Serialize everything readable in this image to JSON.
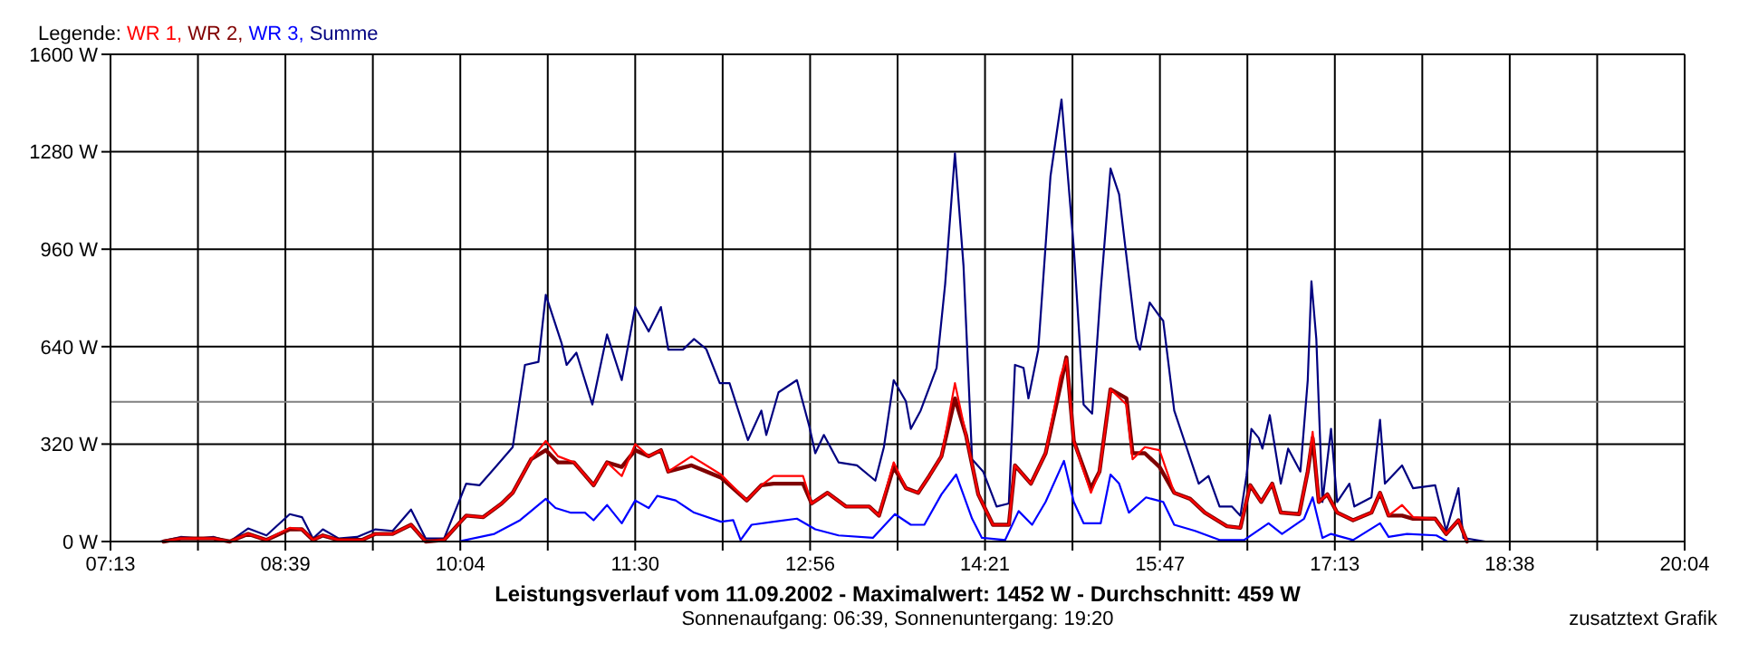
{
  "chart_data": {
    "type": "line",
    "title": "Leistungsverlauf vom 11.09.2002 - Maximalwert: 1452 W - Durchschnitt: 459 W",
    "subtitle": "Sonnenaufgang: 06:39, Sonnenuntergang: 19:20",
    "annotations": [
      "zusatztext Grafik"
    ],
    "legend": "top left",
    "legend_title": "Legende:",
    "grid": true,
    "marker": "none",
    "line_style": "solid",
    "xlim": [
      7.2167,
      20.0667
    ],
    "xticks": [
      {
        "value": 7.2167,
        "label": "07:13"
      },
      {
        "value": 7.9306,
        "label": null
      },
      {
        "value": 8.6444,
        "label": "08:39"
      },
      {
        "value": 9.3583,
        "label": null
      },
      {
        "value": 10.0722,
        "label": "10:04"
      },
      {
        "value": 10.7861,
        "label": null
      },
      {
        "value": 11.5,
        "label": "11:30"
      },
      {
        "value": 12.2139,
        "label": null
      },
      {
        "value": 12.9278,
        "label": "12:56"
      },
      {
        "value": 13.6417,
        "label": null
      },
      {
        "value": 14.3556,
        "label": "14:21"
      },
      {
        "value": 15.0694,
        "label": null
      },
      {
        "value": 15.7833,
        "label": "15:47"
      },
      {
        "value": 16.4972,
        "label": null
      },
      {
        "value": 17.2111,
        "label": "17:13"
      },
      {
        "value": 17.925,
        "label": null
      },
      {
        "value": 18.6389,
        "label": "18:38"
      },
      {
        "value": 19.3528,
        "label": null
      },
      {
        "value": 20.0667,
        "label": "20:04"
      }
    ],
    "ylim": [
      0,
      1600
    ],
    "yticks": [
      {
        "value": 0,
        "label": "0 W"
      },
      {
        "value": 320,
        "label": "320 W"
      },
      {
        "value": 640,
        "label": "640 W"
      },
      {
        "value": 960,
        "label": "960 W"
      },
      {
        "value": 1280,
        "label": "1280 W"
      },
      {
        "value": 1600,
        "label": "1600 W"
      }
    ],
    "ref_lines": [
      {
        "axis": "y",
        "value": 459,
        "color": "#808080"
      }
    ],
    "series": [
      {
        "name": "WR 1,",
        "color": "#ff0000",
        "x": [
          7.65,
          7.79,
          8.06,
          8.19,
          8.34,
          8.49,
          8.68,
          8.78,
          8.87,
          8.95,
          9.08,
          9.27,
          9.38,
          9.52,
          9.67,
          9.79,
          9.94,
          10.12,
          10.26,
          10.41,
          10.5,
          10.65,
          10.77,
          10.87,
          11.0,
          11.16,
          11.27,
          11.39,
          11.5,
          11.61,
          11.71,
          11.77,
          11.96,
          12.2,
          12.41,
          12.53,
          12.63,
          12.87,
          12.94,
          13.07,
          13.22,
          13.41,
          13.49,
          13.61,
          13.71,
          13.81,
          13.9,
          14.0,
          14.11,
          14.2,
          14.3,
          14.42,
          14.55,
          14.6,
          14.73,
          14.85,
          14.97,
          15.02,
          15.08,
          15.22,
          15.29,
          15.38,
          15.51,
          15.56,
          15.66,
          15.78,
          15.9,
          16.03,
          16.15,
          16.33,
          16.44,
          16.52,
          16.61,
          16.7,
          16.77,
          16.92,
          16.99,
          17.03,
          17.08,
          17.15,
          17.23,
          17.36,
          17.51,
          17.58,
          17.65,
          17.76,
          17.85,
          18.03,
          18.12,
          18.22,
          18.29
        ],
        "values": [
          0,
          10,
          10,
          0,
          25,
          5,
          45,
          40,
          5,
          20,
          5,
          5,
          25,
          25,
          55,
          0,
          5,
          85,
          80,
          125,
          160,
          270,
          330,
          280,
          260,
          185,
          260,
          215,
          320,
          280,
          300,
          230,
          280,
          220,
          135,
          185,
          215,
          215,
          125,
          160,
          115,
          115,
          85,
          260,
          175,
          160,
          215,
          280,
          520,
          350,
          155,
          55,
          55,
          250,
          190,
          290,
          540,
          600,
          330,
          160,
          230,
          500,
          450,
          270,
          310,
          300,
          160,
          140,
          95,
          50,
          45,
          185,
          130,
          190,
          95,
          90,
          230,
          360,
          130,
          155,
          95,
          70,
          95,
          160,
          85,
          120,
          80,
          75,
          25,
          70,
          0
        ]
      },
      {
        "name": "WR 2,",
        "color": "#800000",
        "x": [
          7.65,
          7.79,
          8.06,
          8.19,
          8.34,
          8.49,
          8.68,
          8.78,
          8.87,
          8.95,
          9.08,
          9.27,
          9.38,
          9.52,
          9.67,
          9.79,
          9.94,
          10.12,
          10.26,
          10.41,
          10.5,
          10.65,
          10.77,
          10.87,
          11.0,
          11.16,
          11.27,
          11.39,
          11.5,
          11.61,
          11.71,
          11.77,
          11.96,
          12.2,
          12.41,
          12.53,
          12.63,
          12.87,
          12.94,
          13.07,
          13.22,
          13.41,
          13.49,
          13.61,
          13.71,
          13.81,
          13.9,
          14.0,
          14.11,
          14.2,
          14.3,
          14.42,
          14.55,
          14.6,
          14.73,
          14.85,
          14.97,
          15.02,
          15.08,
          15.22,
          15.29,
          15.38,
          15.51,
          15.56,
          15.66,
          15.78,
          15.9,
          16.03,
          16.15,
          16.33,
          16.44,
          16.52,
          16.61,
          16.7,
          16.77,
          16.92,
          16.99,
          17.03,
          17.08,
          17.15,
          17.23,
          17.36,
          17.51,
          17.58,
          17.65,
          17.76,
          17.85,
          18.03,
          18.12,
          18.22,
          18.29
        ],
        "values": [
          0,
          10,
          10,
          0,
          25,
          5,
          40,
          40,
          5,
          20,
          5,
          5,
          25,
          25,
          55,
          0,
          5,
          85,
          80,
          125,
          160,
          270,
          300,
          260,
          260,
          185,
          260,
          245,
          300,
          280,
          300,
          230,
          250,
          210,
          135,
          185,
          190,
          190,
          125,
          160,
          115,
          115,
          85,
          245,
          175,
          160,
          215,
          280,
          470,
          350,
          155,
          55,
          55,
          250,
          190,
          290,
          510,
          605,
          330,
          175,
          230,
          500,
          470,
          290,
          290,
          245,
          160,
          140,
          95,
          50,
          45,
          185,
          130,
          190,
          95,
          90,
          230,
          340,
          130,
          155,
          95,
          70,
          95,
          160,
          85,
          85,
          75,
          75,
          25,
          70,
          0
        ]
      },
      {
        "name": "WR 3,",
        "color": "#0000ff",
        "x": [
          9.94,
          10.06,
          10.35,
          10.56,
          10.65,
          10.77,
          10.85,
          10.97,
          11.09,
          11.16,
          11.27,
          11.39,
          11.5,
          11.61,
          11.68,
          11.83,
          11.98,
          12.2,
          12.3,
          12.36,
          12.45,
          12.63,
          12.82,
          12.97,
          13.16,
          13.44,
          13.62,
          13.75,
          13.86,
          14.0,
          14.12,
          14.25,
          14.33,
          14.52,
          14.63,
          14.74,
          14.85,
          15.0,
          15.08,
          15.16,
          15.3,
          15.38,
          15.45,
          15.53,
          15.67,
          15.81,
          15.9,
          16.07,
          16.27,
          16.47,
          16.67,
          16.78,
          16.96,
          17.03,
          17.11,
          17.18,
          17.36,
          17.58,
          17.65,
          17.8,
          18.04,
          18.13
        ],
        "values": [
          0,
          0,
          25,
          70,
          100,
          140,
          110,
          95,
          95,
          70,
          120,
          60,
          135,
          110,
          150,
          135,
          95,
          65,
          70,
          5,
          55,
          65,
          75,
          40,
          20,
          12,
          90,
          55,
          55,
          155,
          220,
          75,
          12,
          5,
          100,
          55,
          130,
          265,
          130,
          60,
          60,
          220,
          190,
          95,
          145,
          130,
          55,
          35,
          5,
          5,
          60,
          25,
          75,
          145,
          12,
          25,
          5,
          60,
          15,
          25,
          20,
          0
        ]
      },
      {
        "name": "Summe",
        "color": "#000080",
        "x": [
          7.62,
          7.79,
          7.94,
          8.06,
          8.19,
          8.34,
          8.49,
          8.68,
          8.78,
          8.87,
          8.95,
          9.08,
          9.23,
          9.38,
          9.52,
          9.67,
          9.79,
          9.94,
          10.06,
          10.12,
          10.23,
          10.35,
          10.5,
          10.6,
          10.71,
          10.77,
          10.9,
          10.94,
          11.02,
          11.15,
          11.27,
          11.39,
          11.5,
          11.61,
          11.71,
          11.77,
          11.89,
          11.98,
          12.08,
          12.19,
          12.27,
          12.42,
          12.53,
          12.57,
          12.67,
          12.82,
          12.92,
          12.97,
          13.04,
          13.16,
          13.31,
          13.46,
          13.53,
          13.61,
          13.71,
          13.75,
          13.83,
          13.96,
          14.03,
          14.11,
          14.18,
          14.25,
          14.34,
          14.45,
          14.55,
          14.6,
          14.67,
          14.71,
          14.79,
          14.89,
          14.98,
          15.08,
          15.16,
          15.23,
          15.3,
          15.38,
          15.45,
          15.59,
          15.62,
          15.7,
          15.78,
          15.81,
          15.9,
          16.0,
          16.1,
          16.18,
          16.27,
          16.37,
          16.44,
          16.49,
          16.53,
          16.59,
          16.62,
          16.68,
          16.77,
          16.83,
          16.93,
          16.99,
          17.02,
          17.06,
          17.11,
          17.18,
          17.23,
          17.33,
          17.37,
          17.51,
          17.58,
          17.62,
          17.76,
          17.85,
          18.03,
          18.12,
          18.22,
          18.26,
          18.44,
          18.88
        ],
        "values": [
          0,
          15,
          10,
          15,
          0,
          43,
          20,
          90,
          80,
          10,
          40,
          10,
          15,
          40,
          35,
          105,
          10,
          10,
          130,
          190,
          185,
          240,
          310,
          580,
          590,
          810,
          650,
          580,
          620,
          450,
          680,
          530,
          770,
          690,
          770,
          630,
          630,
          665,
          632,
          520,
          520,
          333,
          430,
          350,
          490,
          530,
          380,
          290,
          350,
          260,
          250,
          200,
          310,
          530,
          460,
          370,
          430,
          570,
          845,
          1275,
          905,
          270,
          230,
          115,
          125,
          580,
          570,
          470,
          630,
          1200,
          1452,
          965,
          450,
          420,
          825,
          1225,
          1140,
          665,
          630,
          785,
          740,
          725,
          430,
          310,
          190,
          215,
          115,
          115,
          85,
          215,
          370,
          340,
          305,
          415,
          190,
          305,
          230,
          530,
          855,
          665,
          130,
          370,
          130,
          190,
          115,
          145,
          400,
          190,
          250,
          175,
          185,
          35,
          175,
          12,
          0,
          0
        ]
      }
    ]
  }
}
